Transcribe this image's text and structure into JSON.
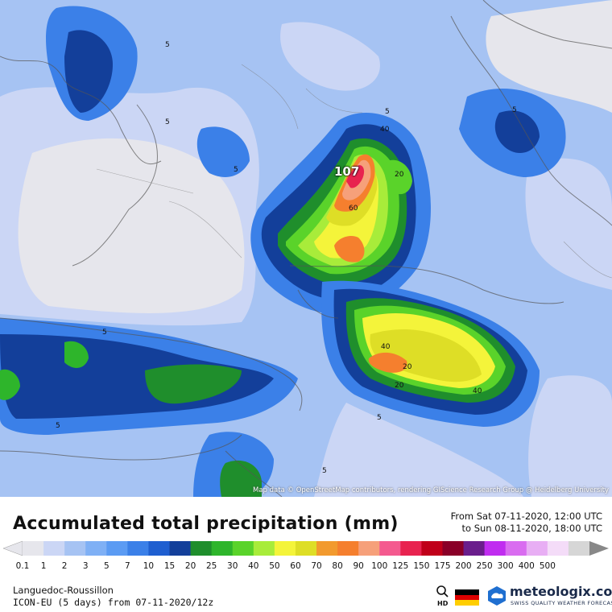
{
  "map": {
    "attribution": "Map data © OpenStreetMap contributors, rendering GIScience Research Group @ Heidelberg University",
    "max_label": "107",
    "contour_labels": [
      "5",
      "5",
      "5",
      "5",
      "5",
      "5",
      "5",
      "5",
      "5",
      "40",
      "20",
      "60",
      "40",
      "20",
      "40",
      "20"
    ]
  },
  "header": {
    "title": "Accumulated total precipitation (mm)",
    "date_from": "From Sat 07-11-2020, 12:00 UTC",
    "date_to": "to Sun 08-11-2020, 18:00 UTC"
  },
  "legend": {
    "ticks": [
      "0.1",
      "1",
      "2",
      "3",
      "5",
      "7",
      "10",
      "15",
      "20",
      "25",
      "30",
      "40",
      "50",
      "60",
      "70",
      "80",
      "90",
      "100",
      "125",
      "150",
      "175",
      "200",
      "250",
      "300",
      "400",
      "500"
    ],
    "colors": [
      "#e6e6ec",
      "#cbd6f5",
      "#a6c3f3",
      "#7fb0f5",
      "#5b9bf3",
      "#3b80e8",
      "#1f5fd0",
      "#133f9a",
      "#1f8e2c",
      "#2eb52b",
      "#5ad32a",
      "#a8ec3a",
      "#f4f43a",
      "#dede26",
      "#f29a2e",
      "#f57f2e",
      "#f6a07a",
      "#f45a8f",
      "#e8234f",
      "#c0001a",
      "#8a0028",
      "#6a1e8c",
      "#c02cf0",
      "#d96cf0",
      "#e8aef4",
      "#f4dcf8",
      "#d6d6d6"
    ]
  },
  "footer": {
    "region": "Languedoc-Roussillon",
    "model": "ICON-EU (5 days) from 07-11-2020/12z",
    "hd_label": "HD",
    "brand_name": "meteologix.com",
    "brand_tagline": "SWISS QUALITY WEATHER FORECASTING"
  }
}
